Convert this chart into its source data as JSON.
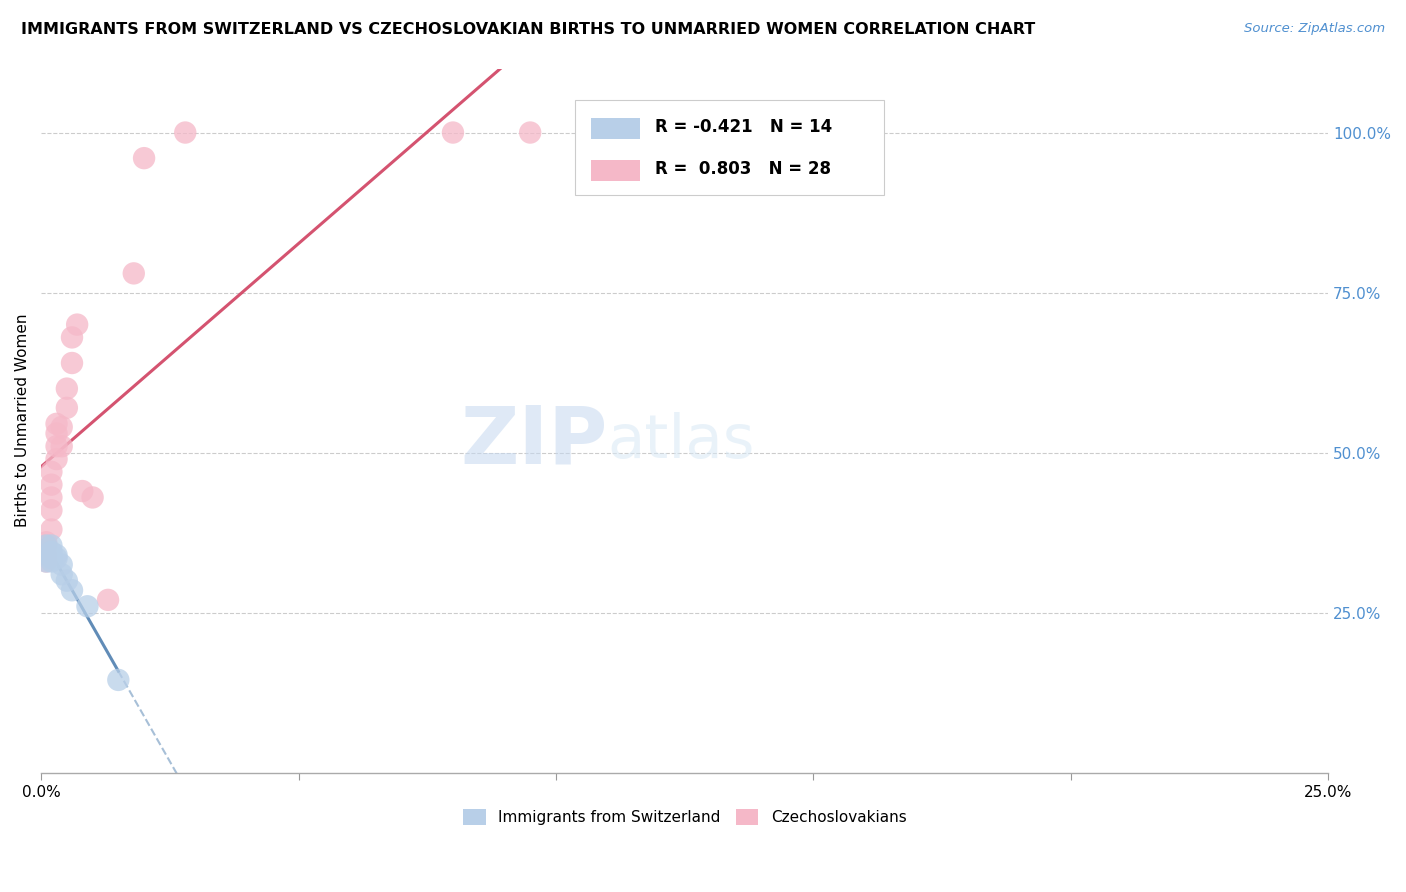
{
  "title": "IMMIGRANTS FROM SWITZERLAND VS CZECHOSLOVAKIAN BIRTHS TO UNMARRIED WOMEN CORRELATION CHART",
  "source": "Source: ZipAtlas.com",
  "ylabel": "Births to Unmarried Women",
  "right_yticks": [
    "100.0%",
    "75.0%",
    "50.0%",
    "25.0%"
  ],
  "right_ytick_vals": [
    1.0,
    0.75,
    0.5,
    0.25
  ],
  "xlim": [
    0.0,
    0.25
  ],
  "ylim": [
    0.0,
    1.1
  ],
  "blue_r": -0.421,
  "blue_n": 14,
  "pink_r": 0.803,
  "pink_n": 28,
  "blue_fill": "#b8cfe8",
  "pink_fill": "#f5b8c8",
  "blue_edge": "#6090c0",
  "pink_edge": "#e06080",
  "blue_line": "#5080b0",
  "pink_line": "#d04060",
  "watermark_zip": "ZIP",
  "watermark_atlas": "atlas",
  "background_color": "#ffffff",
  "grid_color": "#cccccc",
  "blue_dots": [
    [
      0.001,
      0.355
    ],
    [
      0.001,
      0.33
    ],
    [
      0.002,
      0.355
    ],
    [
      0.002,
      0.345
    ],
    [
      0.002,
      0.335
    ],
    [
      0.002,
      0.33
    ],
    [
      0.003,
      0.34
    ],
    [
      0.003,
      0.335
    ],
    [
      0.004,
      0.325
    ],
    [
      0.004,
      0.31
    ],
    [
      0.005,
      0.3
    ],
    [
      0.006,
      0.285
    ],
    [
      0.009,
      0.26
    ],
    [
      0.015,
      0.145
    ]
  ],
  "pink_dots": [
    [
      0.001,
      0.355
    ],
    [
      0.001,
      0.34
    ],
    [
      0.001,
      0.33
    ],
    [
      0.001,
      0.36
    ],
    [
      0.002,
      0.38
    ],
    [
      0.002,
      0.41
    ],
    [
      0.002,
      0.43
    ],
    [
      0.002,
      0.45
    ],
    [
      0.002,
      0.47
    ],
    [
      0.003,
      0.49
    ],
    [
      0.003,
      0.51
    ],
    [
      0.003,
      0.53
    ],
    [
      0.003,
      0.545
    ],
    [
      0.004,
      0.51
    ],
    [
      0.004,
      0.54
    ],
    [
      0.005,
      0.57
    ],
    [
      0.005,
      0.6
    ],
    [
      0.006,
      0.64
    ],
    [
      0.006,
      0.68
    ],
    [
      0.007,
      0.7
    ],
    [
      0.008,
      0.44
    ],
    [
      0.01,
      0.43
    ],
    [
      0.013,
      0.27
    ],
    [
      0.018,
      0.78
    ],
    [
      0.02,
      0.96
    ],
    [
      0.028,
      1.0
    ],
    [
      0.08,
      1.0
    ],
    [
      0.095,
      1.0
    ]
  ],
  "legend_r1": "R = -0.421   N = 14",
  "legend_r2": "R =  0.803   N = 28"
}
